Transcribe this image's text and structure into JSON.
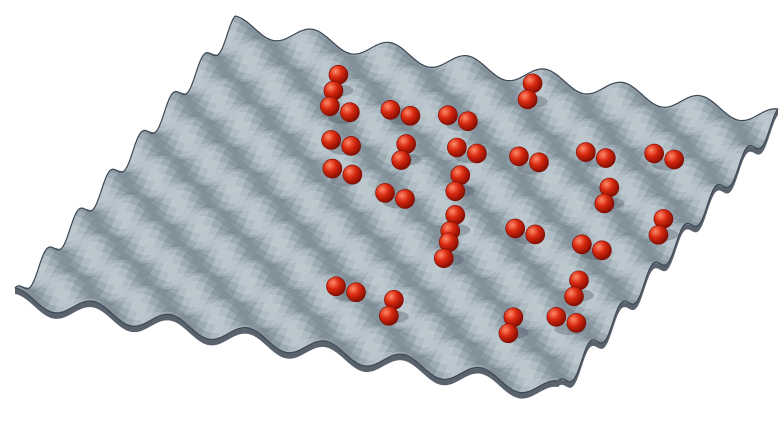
{
  "figure": {
    "kind": "egg-crate potential energy surface with adsorbed dimers",
    "grid": {
      "rows": 7,
      "cols": 7
    },
    "colors": {
      "background": "#ffffff",
      "surface_light": "#c5d0d6",
      "surface_mid": "#9aa8b1",
      "surface_dark": "#6f7d88",
      "surface_edge": "#3c4753",
      "sphere_light": "#ff8a6a",
      "sphere_mid": "#d8280f",
      "sphere_dark": "#7a0a00"
    },
    "dimers": [
      {
        "u": 1.0,
        "v": 1.7,
        "orientation": "vertical"
      },
      {
        "u": 1.6,
        "v": 2.0,
        "orientation": "diagonal"
      },
      {
        "u": 2.3,
        "v": 2.3,
        "orientation": "diagonal"
      },
      {
        "u": 3.0,
        "v": 2.6,
        "orientation": "diagonal"
      },
      {
        "u": 5.6,
        "v": 3.7,
        "orientation": "diagonal"
      },
      {
        "u": 5.9,
        "v": 4.4,
        "orientation": "vertical"
      },
      {
        "u": 1.4,
        "v": 2.7,
        "orientation": "diagonal"
      },
      {
        "u": 2.3,
        "v": 3.1,
        "orientation": "vertical"
      },
      {
        "u": 3.3,
        "v": 3.4,
        "orientation": "diagonal"
      },
      {
        "u": 1.3,
        "v": 3.4,
        "orientation": "diagonal"
      },
      {
        "u": 2.0,
        "v": 3.8,
        "orientation": "diagonal"
      },
      {
        "u": 2.8,
        "v": 4.0,
        "orientation": "vertical"
      },
      {
        "u": 3.7,
        "v": 4.3,
        "orientation": "vertical"
      },
      {
        "u": 4.4,
        "v": 4.5,
        "orientation": "vertical"
      },
      {
        "u": 0.5,
        "v": 4.0,
        "orientation": "vertical"
      },
      {
        "u": 2.0,
        "v": 4.6,
        "orientation": "diagonal"
      },
      {
        "u": 3.6,
        "v": 5.2,
        "orientation": "diagonal"
      },
      {
        "u": 1.6,
        "v": 5.3,
        "orientation": "diagonal"
      },
      {
        "u": 2.5,
        "v": 5.8,
        "orientation": "vertical"
      },
      {
        "u": 3.7,
        "v": 6.1,
        "orientation": "diagonal"
      },
      {
        "u": 4.7,
        "v": 6.3,
        "orientation": "vertical"
      },
      {
        "u": 5.5,
        "v": 6.5,
        "orientation": "diagonal"
      },
      {
        "u": 5.8,
        "v": 5.9,
        "orientation": "vertical"
      },
      {
        "u": 1.4,
        "v": 6.1,
        "orientation": "diagonal"
      },
      {
        "u": 3.0,
        "v": 6.7,
        "orientation": "vertical"
      }
    ]
  }
}
